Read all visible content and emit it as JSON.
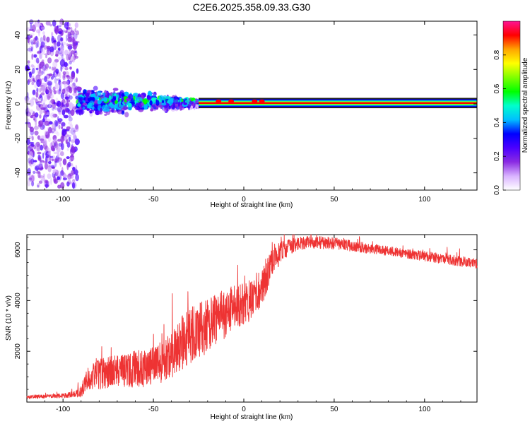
{
  "title": "C2E6.2025.358.09.33.G30",
  "chart_data": [
    {
      "type": "heatmap",
      "id": "spectrogram",
      "xlabel": "Height of straight line (km)",
      "ylabel": "Frequency (Hz)",
      "xlim": [
        -120,
        129
      ],
      "ylim": [
        -50,
        48
      ],
      "xticks": [
        -100,
        -50,
        0,
        50,
        100
      ],
      "yticks": [
        -40,
        -20,
        0,
        20,
        40
      ],
      "colorbar": {
        "label": "Normalized spectral amplitude",
        "range": [
          0,
          1
        ],
        "ticks": [
          "0.0",
          "0.2",
          "0.4",
          "0.6",
          "0.8"
        ],
        "colors": [
          "#ffffff",
          "#d9b3ff",
          "#8a2be2",
          "#4b00ff",
          "#0000ff",
          "#00bfff",
          "#00ffcc",
          "#00ff00",
          "#7fff00",
          "#ffff00",
          "#ffa500",
          "#ff0000",
          "#ff1493"
        ]
      },
      "bands": [
        {
          "name": "noise",
          "x": [
            -120,
            -92
          ],
          "freq_spread": 48,
          "amplitude": 0.15
        },
        {
          "name": "spread",
          "x": [
            -92,
            -25
          ],
          "freq_center": 2,
          "freq_spread": 7,
          "amplitude": 0.35
        },
        {
          "name": "narrow",
          "x": [
            -25,
            129
          ],
          "freq_center": 0.5,
          "freq_spread": 1,
          "amplitude": 0.9
        }
      ]
    },
    {
      "type": "line",
      "id": "snr",
      "xlabel": "Height of straight line (km)",
      "ylabel": "SNR (10 * v/v)",
      "xlim": [
        -120,
        129
      ],
      "ylim": [
        0,
        6600
      ],
      "xticks": [
        -100,
        -50,
        0,
        50,
        100
      ],
      "yticks": [
        2000,
        4000,
        6000
      ],
      "color": "#ee3333",
      "series": [
        {
          "name": "SNR",
          "x": [
            -120,
            -110,
            -100,
            -95,
            -90,
            -87,
            -80,
            -70,
            -60,
            -50,
            -45,
            -40,
            -35,
            -30,
            -25,
            -20,
            -15,
            -10,
            -5,
            0,
            5,
            10,
            15,
            20,
            25,
            30,
            40,
            50,
            60,
            70,
            80,
            90,
            100,
            110,
            120,
            129
          ],
          "values": [
            200,
            220,
            250,
            300,
            400,
            900,
            1100,
            1200,
            1300,
            1400,
            1600,
            1900,
            2300,
            2600,
            2800,
            3000,
            3300,
            3500,
            3700,
            3900,
            4100,
            4600,
            5300,
            5900,
            6100,
            6250,
            6300,
            6250,
            6150,
            6050,
            5950,
            5850,
            5750,
            5650,
            5550,
            5450
          ],
          "noise": [
            60,
            60,
            70,
            100,
            180,
            350,
            500,
            550,
            600,
            650,
            700,
            800,
            900,
            950,
            950,
            900,
            850,
            800,
            750,
            700,
            700,
            650,
            550,
            350,
            250,
            220,
            200,
            200,
            180,
            170,
            160,
            160,
            160,
            170,
            170,
            160
          ]
        }
      ]
    }
  ]
}
